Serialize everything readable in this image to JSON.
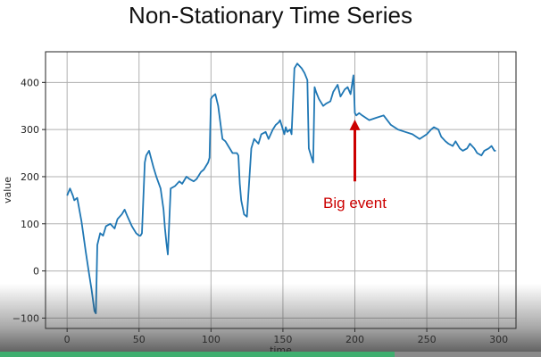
{
  "slide": {
    "title": "Non-Stationary Time Series"
  },
  "colors": {
    "line": "#1f77b4",
    "annotation": "#cc0000",
    "grid": "#b0b0b0",
    "progress": "#3fae6f"
  },
  "video": {
    "progress_fraction": 0.73
  },
  "chart_data": {
    "type": "line",
    "title": "",
    "xlabel": "time",
    "ylabel": "value",
    "xlim": [
      -15,
      312
    ],
    "ylim": [
      -122,
      465
    ],
    "xticks": [
      0,
      50,
      100,
      150,
      200,
      250,
      300
    ],
    "yticks": [
      -100,
      0,
      100,
      200,
      300,
      400
    ],
    "grid": true,
    "series": [
      {
        "x": [
          0,
          2,
          4,
          5,
          7,
          10,
          13,
          15,
          17,
          19,
          20,
          21,
          23,
          25,
          27,
          30,
          33,
          35,
          38,
          40,
          42,
          45,
          48,
          50,
          51,
          52,
          54,
          55,
          57,
          60,
          62,
          65,
          67,
          68,
          69,
          70,
          72,
          75,
          78,
          80,
          83,
          85,
          88,
          90,
          93,
          95,
          98,
          99,
          100,
          101,
          103,
          105,
          108,
          110,
          112,
          115,
          118,
          119,
          120,
          121,
          123,
          125,
          128,
          130,
          133,
          135,
          138,
          140,
          143,
          145,
          147,
          148,
          150,
          151,
          152,
          153,
          155,
          156,
          158,
          160,
          163,
          165,
          167,
          168,
          170,
          171,
          172,
          173,
          175,
          178,
          180,
          183,
          185,
          188,
          190,
          193,
          195,
          197,
          199,
          200,
          201,
          203,
          205,
          210,
          215,
          220,
          225,
          230,
          235,
          240,
          245,
          250,
          253,
          255,
          258,
          260,
          263,
          265,
          268,
          270,
          273,
          275,
          278,
          280,
          283,
          285,
          288,
          290,
          293,
          295,
          297,
          298
        ],
        "y": [
          160,
          175,
          160,
          150,
          155,
          105,
          40,
          0,
          -40,
          -85,
          -90,
          55,
          80,
          75,
          95,
          100,
          90,
          110,
          120,
          130,
          115,
          95,
          80,
          75,
          75,
          80,
          230,
          245,
          255,
          220,
          200,
          175,
          130,
          90,
          60,
          35,
          175,
          180,
          190,
          185,
          200,
          195,
          190,
          195,
          210,
          215,
          230,
          240,
          365,
          370,
          375,
          350,
          280,
          275,
          265,
          250,
          250,
          245,
          185,
          150,
          120,
          115,
          260,
          280,
          270,
          290,
          295,
          280,
          300,
          310,
          315,
          320,
          300,
          290,
          305,
          295,
          300,
          290,
          430,
          440,
          430,
          420,
          405,
          260,
          240,
          230,
          390,
          380,
          365,
          350,
          355,
          360,
          380,
          395,
          370,
          385,
          390,
          375,
          415,
          335,
          330,
          335,
          330,
          320,
          325,
          330,
          310,
          300,
          295,
          290,
          280,
          290,
          300,
          305,
          300,
          285,
          275,
          270,
          265,
          275,
          260,
          255,
          260,
          270,
          260,
          250,
          245,
          255,
          260,
          265,
          255,
          255
        ]
      }
    ],
    "annotations": [
      {
        "text": "Big event",
        "arrow_from": [
          200,
          190
        ],
        "arrow_to": [
          200,
          325
        ]
      }
    ]
  }
}
